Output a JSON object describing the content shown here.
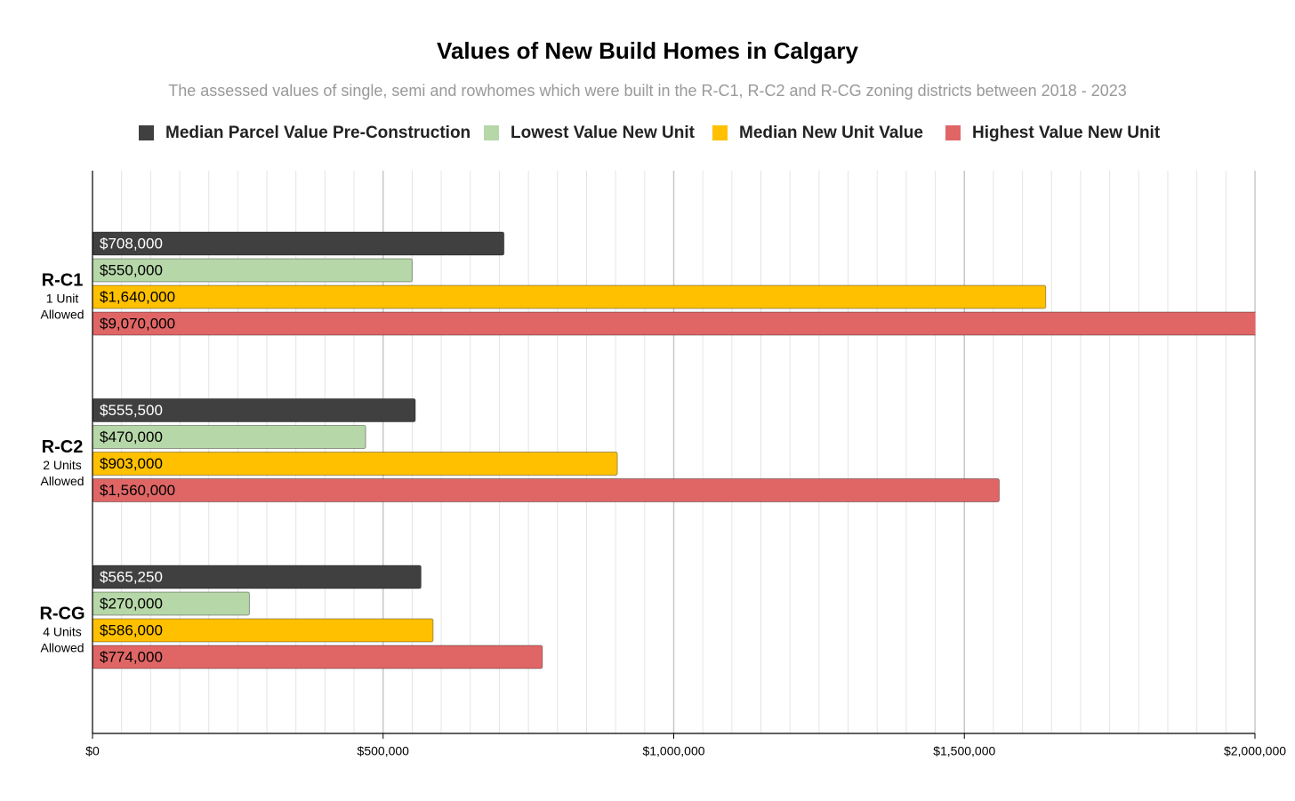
{
  "chart_data": {
    "type": "bar",
    "orientation": "horizontal",
    "title": "Values of New Build Homes in Calgary",
    "subtitle": "The assessed values of single, semi and rowhomes which were built in the R-C1, R-C2 and R-CG zoning districts between 2018 - 2023",
    "categories": [
      "R-C1",
      "R-C2",
      "R-CG"
    ],
    "category_sublabels": [
      [
        "1 Unit",
        "Allowed"
      ],
      [
        "2 Units",
        "Allowed"
      ],
      [
        "4 Units",
        "Allowed"
      ]
    ],
    "series": [
      {
        "name": "Median Parcel Value Pre-Construction",
        "color": "#404040",
        "label_color": "#ffffff",
        "values": [
          708000,
          555500,
          565250
        ],
        "value_labels": [
          "$708,000",
          "$555,500",
          "$565,250"
        ]
      },
      {
        "name": "Lowest Value New Unit",
        "color": "#b6d7a8",
        "label_color": "#000000",
        "values": [
          550000,
          470000,
          270000
        ],
        "value_labels": [
          "$550,000",
          "$470,000",
          "$270,000"
        ]
      },
      {
        "name": "Median New Unit Value",
        "color": "#ffc000",
        "label_color": "#000000",
        "values": [
          1640000,
          903000,
          586000
        ],
        "value_labels": [
          "$1,640,000",
          "$903,000",
          "$586,000"
        ]
      },
      {
        "name": "Highest Value New Unit",
        "color": "#e06666",
        "label_color": "#000000",
        "values": [
          9070000,
          1560000,
          774000
        ],
        "value_labels": [
          "$9,070,000",
          "$1,560,000",
          "$774,000"
        ]
      }
    ],
    "xlim": [
      0,
      2000000
    ],
    "xticks": [
      {
        "value": 0,
        "label": "$0"
      },
      {
        "value": 500000,
        "label": "$500,000"
      },
      {
        "value": 1000000,
        "label": "$1,000,000"
      },
      {
        "value": 1500000,
        "label": "$1,500,000"
      },
      {
        "value": 2000000,
        "label": "$2,000,000"
      }
    ],
    "minor_grid_interval": 50000,
    "grid": true,
    "legend": "top"
  }
}
